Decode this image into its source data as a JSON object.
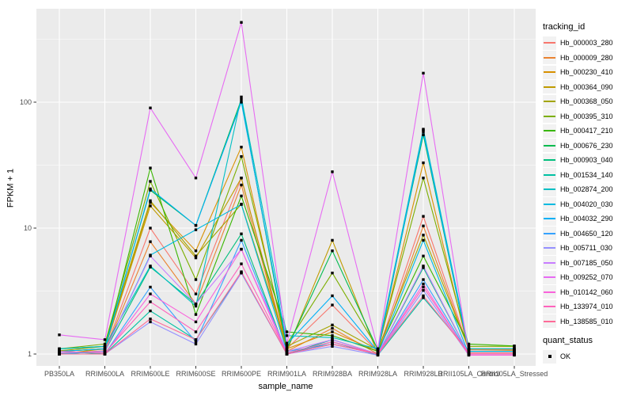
{
  "legend": {
    "tracking_title": "tracking_id",
    "quant_title": "quant_status",
    "quant_label": "OK"
  },
  "colors": {
    "panel_bg": "#EBEBEB",
    "grid": "#FFFFFF",
    "tick_text": "#4D4D4D",
    "marker": "#000000"
  },
  "chart_data": {
    "type": "line",
    "title": "",
    "xlabel": "sample_name",
    "ylabel": "FPKM + 1",
    "y_scale": "log10",
    "y_ticks": [
      1,
      10,
      100
    ],
    "y_minor_ticks": [
      3.1623,
      31.623,
      316.23
    ],
    "ylim": [
      0.8,
      550
    ],
    "grid": true,
    "legend_position": "right",
    "marker": {
      "shape": "filled-square",
      "color": "#000000",
      "meaning": "quant_status OK"
    },
    "x_categories": [
      "PB350LA",
      "RRIM600LA",
      "RRIM600LE",
      "RRIM600SE",
      "RRIM600PE",
      "RRIM901LA",
      "RRIM928BA",
      "RRIM928LA",
      "RRIM928LB",
      "RRII105LA_Control",
      "RRII105LA_Stressed"
    ],
    "series": [
      {
        "name": "Hb_000003_280",
        "color": "#F8766D",
        "values": [
          1.02,
          1.06,
          10,
          3.0,
          25,
          1.1,
          2.45,
          1.04,
          12.4,
          1.1,
          1.1
        ]
      },
      {
        "name": "Hb_000009_280",
        "color": "#EA8331",
        "values": [
          1.0,
          1.05,
          7.8,
          2.5,
          22,
          1.05,
          1.6,
          1.0,
          10.4,
          1.08,
          1.08
        ]
      },
      {
        "name": "Hb_000230_410",
        "color": "#D89000",
        "values": [
          1.05,
          1.1,
          16,
          6.6,
          44,
          1.1,
          1.5,
          1.05,
          33,
          1.05,
          1.06
        ]
      },
      {
        "name": "Hb_000364_090",
        "color": "#C09B00",
        "values": [
          1.0,
          1.1,
          15,
          5.8,
          25,
          1.06,
          8.0,
          1.0,
          60,
          1.02,
          1.02
        ]
      },
      {
        "name": "Hb_000368_050",
        "color": "#A3A500",
        "values": [
          1.06,
          1.15,
          16.5,
          6.0,
          15.5,
          1.15,
          1.7,
          1.08,
          8.8,
          1.1,
          1.1
        ]
      },
      {
        "name": "Hb_000395_310",
        "color": "#7CAE00",
        "values": [
          1.1,
          1.2,
          23.5,
          3.9,
          37,
          1.2,
          4.4,
          1.1,
          25,
          1.15,
          1.15
        ]
      },
      {
        "name": "Hb_000417_210",
        "color": "#39B600",
        "values": [
          1.05,
          1.1,
          30,
          2.06,
          18,
          1.5,
          1.4,
          1.05,
          6.0,
          1.2,
          1.16
        ]
      },
      {
        "name": "Hb_000676_230",
        "color": "#00BB4E",
        "values": [
          1.1,
          1.15,
          20,
          10.5,
          105,
          1.1,
          6.6,
          1.08,
          55,
          1.05,
          1.05
        ]
      },
      {
        "name": "Hb_000903_040",
        "color": "#00BF7D",
        "values": [
          1.0,
          1.05,
          4.9,
          2.5,
          9.0,
          1.0,
          1.3,
          1.0,
          4.85,
          1.0,
          1.0
        ]
      },
      {
        "name": "Hb_001534_140",
        "color": "#00C1A3",
        "values": [
          1.05,
          1.0,
          2.2,
          1.3,
          4.4,
          1.0,
          1.25,
          0.98,
          2.8,
          1.05,
          1.05
        ]
      },
      {
        "name": "Hb_002874_200",
        "color": "#00BFC4",
        "values": [
          1.1,
          1.15,
          5.0,
          2.4,
          110,
          1.4,
          1.35,
          1.1,
          61,
          1.1,
          1.1
        ]
      },
      {
        "name": "Hb_004020_030",
        "color": "#00BAE0",
        "values": [
          1.0,
          1.05,
          6.1,
          9.7,
          15.4,
          1.05,
          1.2,
          1.0,
          8.0,
          1.0,
          1.0
        ]
      },
      {
        "name": "Hb_004032_290",
        "color": "#00B0F6",
        "values": [
          1.05,
          1.1,
          20.5,
          10.5,
          100,
          1.2,
          2.9,
          1.05,
          58,
          1.05,
          1.05
        ]
      },
      {
        "name": "Hb_004650_120",
        "color": "#35A2FF",
        "values": [
          1.0,
          1.0,
          3.4,
          1.25,
          8.0,
          1.0,
          1.2,
          1.0,
          3.9,
          1.0,
          1.0
        ]
      },
      {
        "name": "Hb_005711_030",
        "color": "#9590FF",
        "values": [
          1.0,
          1.0,
          1.8,
          1.2,
          4.4,
          1.0,
          1.15,
          0.98,
          3.2,
          0.98,
          0.98
        ]
      },
      {
        "name": "Hb_007185_050",
        "color": "#C77CFF",
        "values": [
          1.02,
          1.05,
          6.0,
          2.5,
          6.8,
          1.05,
          1.3,
          1.0,
          5.0,
          1.0,
          1.0
        ]
      },
      {
        "name": "Hb_009252_070",
        "color": "#E76BF3",
        "values": [
          1.42,
          1.3,
          90,
          25,
          430,
          1.22,
          28,
          1.1,
          170,
          1.0,
          1.0
        ]
      },
      {
        "name": "Hb_010142_060",
        "color": "#FA62DB",
        "values": [
          1.0,
          1.0,
          3.0,
          1.8,
          6.8,
          1.0,
          1.2,
          1.0,
          3.6,
          0.98,
          0.98
        ]
      },
      {
        "name": "Hb_133974_010",
        "color": "#FF62BC",
        "values": [
          1.05,
          1.02,
          2.6,
          1.5,
          5.2,
          1.02,
          1.25,
          1.0,
          3.4,
          1.0,
          1.0
        ]
      },
      {
        "name": "Hb_138585_010",
        "color": "#FF6A98",
        "values": [
          1.0,
          1.0,
          1.9,
          1.3,
          4.5,
          1.0,
          1.2,
          1.0,
          2.9,
          1.02,
          1.02
        ]
      }
    ]
  }
}
